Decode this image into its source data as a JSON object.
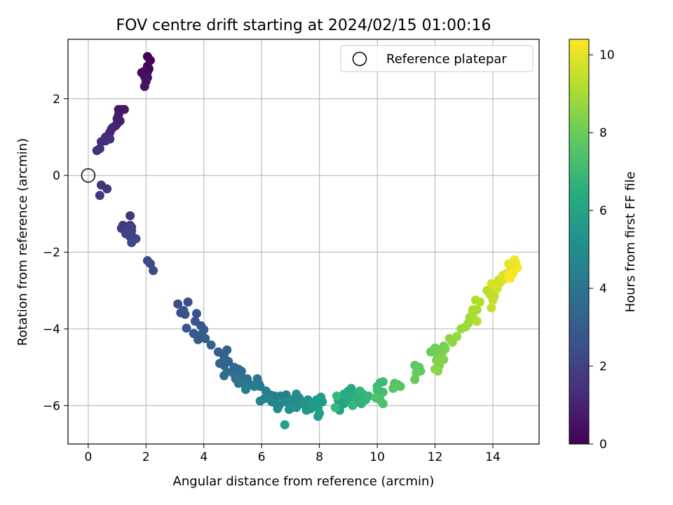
{
  "chart_data": {
    "type": "scatter",
    "title": "FOV centre drift starting at 2024/02/15 01:00:16",
    "xlabel": "Angular distance from reference (arcmin)",
    "ylabel": "Rotation from reference (arcmin)",
    "xlim": [
      -0.7,
      15.6
    ],
    "ylim": [
      -7,
      3.55
    ],
    "xticks": [
      0,
      2,
      4,
      6,
      8,
      10,
      12,
      14
    ],
    "yticks": [
      -6,
      -4,
      -2,
      0,
      2
    ],
    "grid": true,
    "legend": {
      "position": "top-right",
      "entries": [
        {
          "label": "Reference platepar",
          "marker": "open-circle"
        }
      ]
    },
    "reference": {
      "x": 0,
      "y": 0
    },
    "colorbar": {
      "label": "Hours from first FF file",
      "range": [
        0,
        10.4
      ],
      "ticks": [
        0,
        2,
        4,
        6,
        8,
        10
      ],
      "colormap": "viridis"
    },
    "series": [
      {
        "points": [
          [
            2.05,
            3.1
          ],
          [
            2.15,
            3.0
          ],
          [
            2.05,
            2.85
          ],
          [
            2.1,
            2.78
          ],
          [
            1.95,
            2.72
          ],
          [
            2.05,
            2.7
          ],
          [
            1.85,
            2.68
          ],
          [
            2.0,
            2.62
          ],
          [
            1.95,
            2.58
          ],
          [
            2.05,
            2.55
          ],
          [
            2.0,
            2.45
          ],
          [
            1.95,
            2.32
          ],
          [
            1.05,
            1.72
          ],
          [
            1.15,
            1.72
          ],
          [
            1.25,
            1.72
          ],
          [
            1.05,
            1.58
          ],
          [
            1.0,
            1.48
          ],
          [
            1.1,
            1.42
          ],
          [
            1.0,
            1.35
          ],
          [
            0.95,
            1.3
          ],
          [
            0.85,
            1.25
          ],
          [
            0.8,
            1.2
          ],
          [
            0.75,
            1.12
          ],
          [
            0.7,
            1.05
          ],
          [
            0.6,
            1.0
          ],
          [
            0.7,
            0.98
          ],
          [
            0.55,
            0.92
          ],
          [
            0.45,
            0.88
          ],
          [
            0.6,
            0.9
          ],
          [
            0.75,
            0.95
          ],
          [
            0.4,
            0.7
          ],
          [
            0.3,
            0.65
          ],
          [
            0.45,
            -0.25
          ],
          [
            0.65,
            -0.35
          ],
          [
            0.4,
            -0.52
          ],
          [
            1.45,
            -1.05
          ],
          [
            1.2,
            -1.3
          ],
          [
            1.15,
            -1.38
          ],
          [
            1.25,
            -1.42
          ],
          [
            1.45,
            -1.3
          ],
          [
            1.5,
            -1.35
          ],
          [
            1.35,
            -1.45
          ],
          [
            1.5,
            -1.45
          ],
          [
            1.3,
            -1.52
          ],
          [
            1.45,
            -1.6
          ],
          [
            1.55,
            -1.62
          ],
          [
            1.65,
            -1.65
          ],
          [
            1.5,
            -1.75
          ],
          [
            2.05,
            -2.22
          ],
          [
            2.15,
            -2.3
          ],
          [
            2.25,
            -2.48
          ],
          [
            3.45,
            -3.3
          ],
          [
            3.1,
            -3.35
          ],
          [
            3.3,
            -3.52
          ],
          [
            3.2,
            -3.58
          ],
          [
            3.35,
            -3.62
          ],
          [
            3.75,
            -3.6
          ],
          [
            3.7,
            -3.8
          ],
          [
            3.9,
            -3.92
          ],
          [
            3.4,
            -3.98
          ],
          [
            4.0,
            -4.02
          ],
          [
            3.65,
            -4.12
          ],
          [
            3.9,
            -4.15
          ],
          [
            3.8,
            -4.28
          ],
          [
            4.05,
            -4.25
          ],
          [
            4.25,
            -4.42
          ],
          [
            4.5,
            -4.6
          ],
          [
            4.8,
            -4.55
          ],
          [
            4.7,
            -4.72
          ],
          [
            4.85,
            -4.85
          ],
          [
            4.55,
            -4.9
          ],
          [
            4.7,
            -4.95
          ],
          [
            5.05,
            -5.0
          ],
          [
            5.2,
            -5.05
          ],
          [
            5.1,
            -5.1
          ],
          [
            5.3,
            -5.1
          ],
          [
            4.8,
            -5.12
          ],
          [
            5.05,
            -5.18
          ],
          [
            4.7,
            -5.22
          ],
          [
            5.3,
            -5.25
          ],
          [
            5.5,
            -5.3
          ],
          [
            5.1,
            -5.3
          ],
          [
            5.5,
            -5.38
          ],
          [
            5.2,
            -5.42
          ],
          [
            5.6,
            -5.45
          ],
          [
            5.35,
            -5.42
          ],
          [
            5.85,
            -5.3
          ],
          [
            5.9,
            -5.42
          ],
          [
            5.95,
            -5.5
          ],
          [
            5.75,
            -5.5
          ],
          [
            5.45,
            -5.58
          ],
          [
            6.15,
            -5.62
          ],
          [
            6.3,
            -5.72
          ],
          [
            6.45,
            -5.75
          ],
          [
            6.65,
            -5.75
          ],
          [
            6.85,
            -5.72
          ],
          [
            6.1,
            -5.82
          ],
          [
            5.95,
            -5.88
          ],
          [
            6.35,
            -5.9
          ],
          [
            6.5,
            -5.95
          ],
          [
            6.6,
            -6.0
          ],
          [
            6.55,
            -6.08
          ],
          [
            6.8,
            -5.9
          ],
          [
            7.0,
            -5.85
          ],
          [
            7.1,
            -5.95
          ],
          [
            7.2,
            -5.7
          ],
          [
            7.3,
            -5.8
          ],
          [
            7.05,
            -6.05
          ],
          [
            6.95,
            -6.1
          ],
          [
            7.2,
            -6.05
          ],
          [
            7.4,
            -5.95
          ],
          [
            7.6,
            -5.85
          ],
          [
            7.5,
            -6.0
          ],
          [
            7.55,
            -6.12
          ],
          [
            7.7,
            -6.08
          ],
          [
            7.8,
            -5.95
          ],
          [
            7.9,
            -5.85
          ],
          [
            8.05,
            -5.78
          ],
          [
            8.1,
            -5.9
          ],
          [
            7.95,
            -6.05
          ],
          [
            8.0,
            -6.2
          ],
          [
            7.95,
            -6.28
          ],
          [
            6.8,
            -6.5
          ],
          [
            8.65,
            -5.85
          ],
          [
            8.7,
            -6.0
          ],
          [
            8.7,
            -6.12
          ],
          [
            8.85,
            -5.95
          ],
          [
            8.95,
            -5.82
          ],
          [
            8.85,
            -5.7
          ],
          [
            9.0,
            -5.62
          ],
          [
            9.1,
            -5.55
          ],
          [
            9.2,
            -5.68
          ],
          [
            9.0,
            -5.75
          ],
          [
            9.05,
            -5.9
          ],
          [
            9.2,
            -5.95
          ],
          [
            9.3,
            -5.85
          ],
          [
            9.35,
            -5.75
          ],
          [
            9.5,
            -5.7
          ],
          [
            9.55,
            -5.8
          ],
          [
            9.45,
            -5.95
          ],
          [
            9.6,
            -5.85
          ],
          [
            9.7,
            -5.75
          ],
          [
            9.4,
            -5.62
          ],
          [
            9.15,
            -6.0
          ],
          [
            8.6,
            -5.75
          ],
          [
            8.55,
            -6.05
          ],
          [
            10.0,
            -5.5
          ],
          [
            10.1,
            -5.4
          ],
          [
            10.2,
            -5.38
          ],
          [
            10.0,
            -5.6
          ],
          [
            10.05,
            -5.72
          ],
          [
            10.2,
            -5.65
          ],
          [
            10.1,
            -5.85
          ],
          [
            10.2,
            -5.95
          ],
          [
            9.95,
            -5.8
          ],
          [
            10.6,
            -5.42
          ],
          [
            10.7,
            -5.45
          ],
          [
            10.8,
            -5.5
          ],
          [
            10.55,
            -5.55
          ],
          [
            10.65,
            -5.5
          ],
          [
            11.3,
            -4.95
          ],
          [
            11.45,
            -5.0
          ],
          [
            11.5,
            -5.1
          ],
          [
            11.35,
            -5.15
          ],
          [
            11.3,
            -5.32
          ],
          [
            11.85,
            -4.6
          ],
          [
            12.0,
            -4.5
          ],
          [
            12.05,
            -4.65
          ],
          [
            12.15,
            -4.55
          ],
          [
            12.3,
            -4.45
          ],
          [
            12.25,
            -4.6
          ],
          [
            12.35,
            -4.52
          ],
          [
            12.2,
            -4.72
          ],
          [
            12.05,
            -4.82
          ],
          [
            12.3,
            -4.8
          ],
          [
            12.15,
            -4.95
          ],
          [
            12.0,
            -5.05
          ],
          [
            12.1,
            -5.1
          ],
          [
            12.5,
            -4.25
          ],
          [
            12.6,
            -4.35
          ],
          [
            12.75,
            -4.2
          ],
          [
            12.9,
            -4.0
          ],
          [
            13.05,
            -3.95
          ],
          [
            13.15,
            -3.85
          ],
          [
            13.2,
            -3.7
          ],
          [
            13.3,
            -3.6
          ],
          [
            13.35,
            -3.75
          ],
          [
            13.45,
            -3.5
          ],
          [
            13.3,
            -3.5
          ],
          [
            13.4,
            -3.25
          ],
          [
            13.55,
            -3.3
          ],
          [
            13.45,
            -3.8
          ],
          [
            13.8,
            -3.0
          ],
          [
            13.9,
            -3.1
          ],
          [
            14.0,
            -2.95
          ],
          [
            14.05,
            -3.15
          ],
          [
            14.0,
            -3.25
          ],
          [
            13.95,
            -3.45
          ],
          [
            14.1,
            -2.85
          ],
          [
            14.2,
            -2.72
          ],
          [
            14.25,
            -2.8
          ],
          [
            14.15,
            -2.95
          ],
          [
            13.95,
            -2.82
          ],
          [
            14.35,
            -2.6
          ],
          [
            14.4,
            -2.7
          ],
          [
            14.5,
            -2.55
          ],
          [
            14.6,
            -2.5
          ],
          [
            14.7,
            -2.45
          ],
          [
            14.55,
            -2.3
          ],
          [
            14.65,
            -2.35
          ],
          [
            14.8,
            -2.3
          ],
          [
            14.75,
            -2.2
          ],
          [
            14.85,
            -2.4
          ],
          [
            14.7,
            -2.55
          ],
          [
            14.55,
            -2.6
          ],
          [
            14.6,
            -2.68
          ]
        ]
      }
    ]
  }
}
